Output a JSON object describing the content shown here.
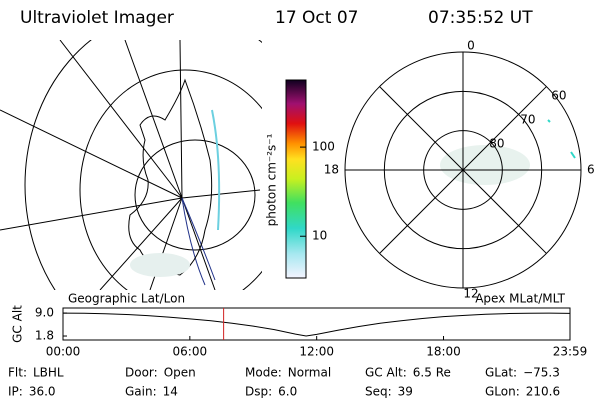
{
  "header": {
    "title": "Ultraviolet Imager",
    "date": "17 Oct 07",
    "time": "07:35:52 UT"
  },
  "colorbar": {
    "label": "photon cm⁻²s⁻¹",
    "scale": "log",
    "lim": [
      3.4,
      566
    ],
    "ticks": [
      100,
      10
    ]
  },
  "polar": {
    "lat_lim": [
      90,
      60
    ],
    "lat_ticks": [
      80,
      70,
      60
    ],
    "mlt_ticks": [
      12,
      18,
      6,
      0
    ]
  },
  "timeline": {
    "left_label": "Geographic Lat/Lon",
    "right_label": "Apex MLat/MLT",
    "ylabel": "GC Alt",
    "ylim": [
      0.55,
      10.6
    ],
    "yticks": [
      {
        "value": 9,
        "label": "9.0"
      },
      1.8
    ],
    "xlim": [
      0,
      23.983
    ],
    "xticks": [
      {
        "value": 0,
        "label": "00:00"
      },
      {
        "value": 6,
        "label": "06:00"
      },
      {
        "value": 12,
        "label": "12:00"
      },
      {
        "value": 18,
        "label": "18:00"
      },
      {
        "value": 23.983,
        "label": "23:59"
      }
    ],
    "x": [
      0,
      1,
      2,
      3,
      4,
      5,
      6,
      7,
      8,
      9,
      10,
      11,
      11.5,
      12,
      13,
      14,
      15,
      16,
      17,
      18,
      19,
      20,
      21,
      22,
      23,
      23.983
    ],
    "values": [
      9.0,
      8.95,
      8.8,
      8.55,
      8.2,
      7.75,
      7.2,
      6.6,
      5.8,
      4.9,
      3.8,
      2.4,
      1.8,
      2.3,
      3.6,
      4.8,
      5.8,
      6.6,
      7.3,
      7.9,
      8.3,
      8.65,
      8.85,
      8.97,
      9.0,
      8.9
    ],
    "cursor": 7.598
  },
  "status": {
    "rows": [
      [
        {
          "label": "Flt:",
          "value": "LBHL"
        },
        {
          "label": "Door:",
          "value": "Open"
        },
        {
          "label": "Mode:",
          "value": "Normal"
        },
        {
          "label": "GC Alt:",
          "value": "6.5 Re"
        },
        {
          "label": "GLat:",
          "value": "−75.3"
        }
      ],
      [
        {
          "label": "IP:",
          "value": "36.0"
        },
        {
          "label": "Gain:",
          "value": "14"
        },
        {
          "label": "Dsp:",
          "value": "6.0"
        },
        {
          "label": "Seq:",
          "value": "39"
        },
        {
          "label": "GLon:",
          "value": "210.6"
        }
      ]
    ]
  }
}
